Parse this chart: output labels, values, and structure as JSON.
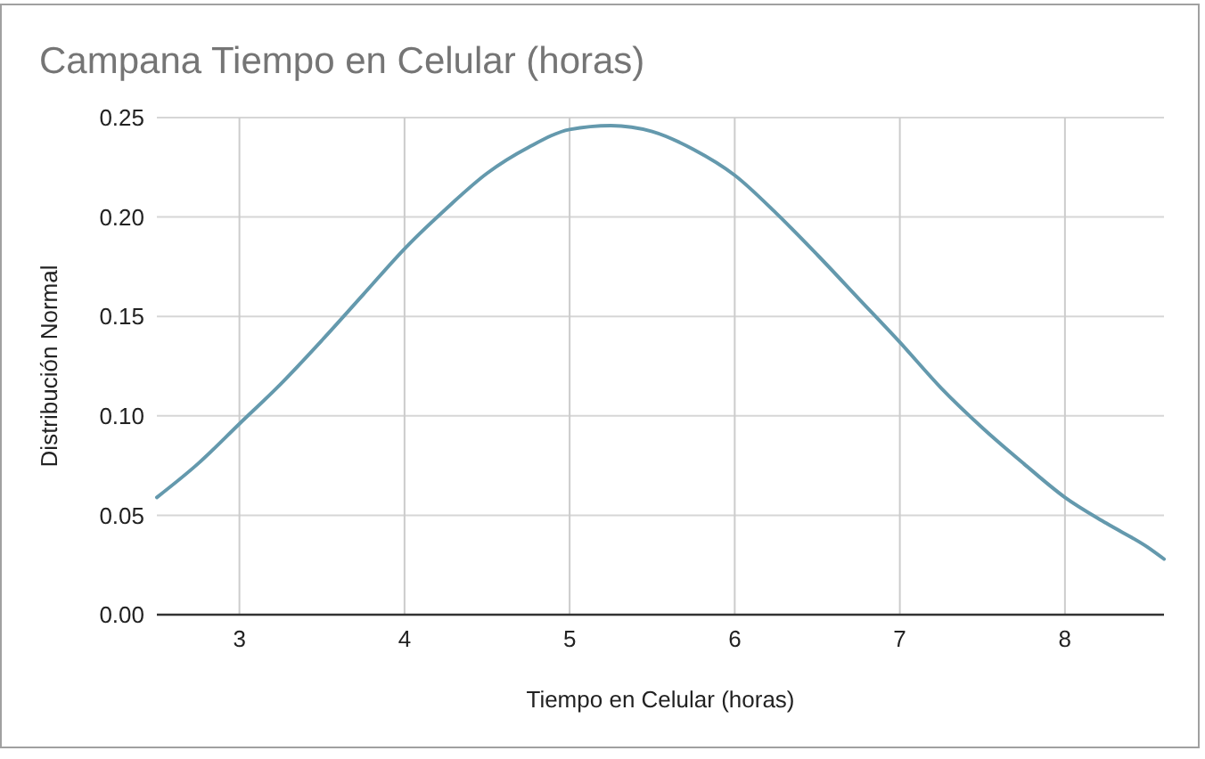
{
  "chart_data": {
    "type": "line",
    "title": "Campana Tiempo en Celular (horas)",
    "xlabel": "Tiempo en Celular (horas)",
    "ylabel": "Distribución Normal",
    "x": [
      2.5,
      2.75,
      3,
      3.25,
      3.5,
      3.75,
      4,
      4.25,
      4.5,
      4.75,
      5,
      5.25,
      5.5,
      5.75,
      6,
      6.25,
      6.5,
      6.75,
      7,
      7.25,
      7.5,
      7.75,
      8,
      8.25,
      8.5,
      8.6
    ],
    "series": [
      {
        "color": "#6499ad",
        "values": [
          0.059,
          0.076,
          0.096,
          0.116,
          0.138,
          0.161,
          0.184,
          0.204,
          0.222,
          0.235,
          0.244,
          0.246,
          0.243,
          0.234,
          0.221,
          0.202,
          0.181,
          0.159,
          0.137,
          0.114,
          0.094,
          0.076,
          0.059,
          0.046,
          0.034,
          0.028
        ]
      }
    ],
    "xlim": [
      2.5,
      8.6
    ],
    "xticks": [
      3,
      4,
      5,
      6,
      7,
      8
    ],
    "ylim": [
      0,
      0.25
    ],
    "yticks": [
      {
        "value": 0,
        "label": "0.00"
      },
      0.05,
      {
        "value": 0.1,
        "label": "0.10"
      },
      0.15,
      {
        "value": 0.2,
        "label": "0.20"
      },
      0.25
    ],
    "grid": true
  }
}
